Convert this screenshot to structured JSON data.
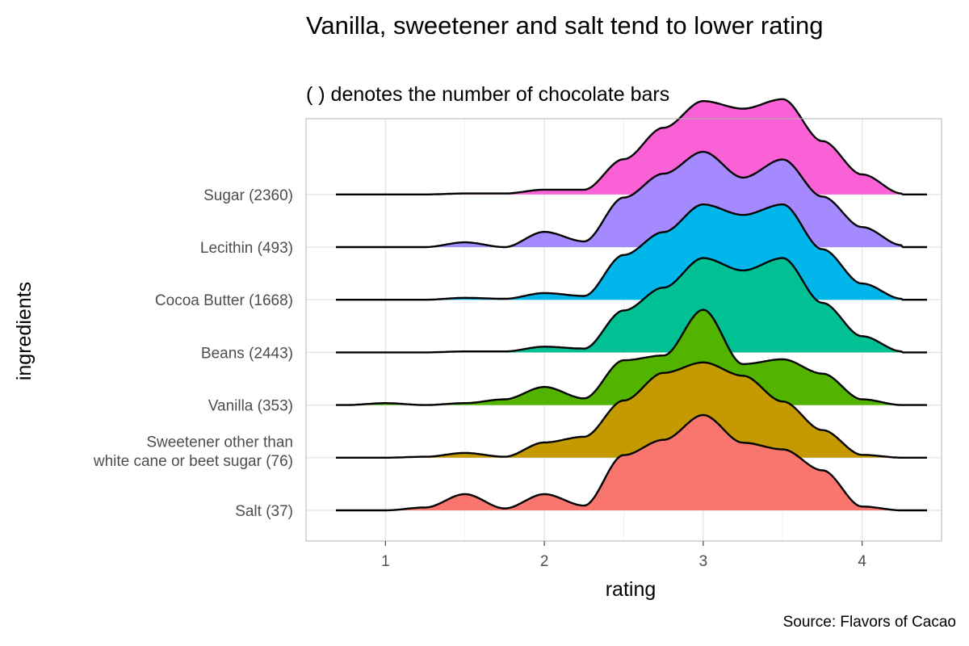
{
  "title": "Vanilla, sweetener and salt tend to lower rating",
  "subtitle": "( ) denotes the number of chocolate bars",
  "caption": "Source: Flavors of Cacao",
  "chart_data": {
    "type": "ridgeline",
    "xlabel": "rating",
    "ylabel": "ingredients",
    "xlim": [
      0.5,
      4.5
    ],
    "x_ticks": [
      1,
      2,
      3,
      4
    ],
    "grid": true,
    "legend": "none",
    "x": [
      0.75,
      1.0,
      1.25,
      1.5,
      1.75,
      2.0,
      2.25,
      2.5,
      2.75,
      3.0,
      3.25,
      3.5,
      3.75,
      4.0,
      4.25
    ],
    "series": [
      {
        "name": "Salt (37)",
        "color": "#F8766D",
        "density": [
          0.0,
          0.0,
          0.03,
          0.17,
          0.02,
          0.17,
          0.05,
          0.58,
          0.74,
          1.0,
          0.71,
          0.64,
          0.42,
          0.04,
          0.0
        ]
      },
      {
        "name": "Sweetener other than white cane or beet sugar (76)",
        "color": "#C49A00",
        "density": [
          0.0,
          0.0,
          0.01,
          0.05,
          0.01,
          0.16,
          0.22,
          0.6,
          0.89,
          1.0,
          0.86,
          0.59,
          0.29,
          0.03,
          0.0
        ]
      },
      {
        "name": "Vanilla (353)",
        "color": "#53B400",
        "density": [
          0.0,
          0.02,
          0.0,
          0.02,
          0.06,
          0.19,
          0.07,
          0.47,
          0.52,
          1.0,
          0.43,
          0.48,
          0.33,
          0.06,
          0.0
        ]
      },
      {
        "name": "Beans (2443)",
        "color": "#00C094",
        "density": [
          0.0,
          0.0,
          0.0,
          0.01,
          0.01,
          0.06,
          0.04,
          0.44,
          0.68,
          0.99,
          0.86,
          0.99,
          0.52,
          0.17,
          0.01
        ]
      },
      {
        "name": "Cocoa Butter (1668)",
        "color": "#00B6EB",
        "density": [
          0.0,
          0.0,
          0.0,
          0.02,
          0.01,
          0.07,
          0.04,
          0.47,
          0.71,
          1.0,
          0.89,
          1.0,
          0.53,
          0.17,
          0.01
        ]
      },
      {
        "name": "Lecithin (493)",
        "color": "#A58AFF",
        "density": [
          0.0,
          0.0,
          0.0,
          0.05,
          0.0,
          0.16,
          0.06,
          0.52,
          0.77,
          1.0,
          0.73,
          0.92,
          0.53,
          0.21,
          0.02
        ]
      },
      {
        "name": "Sugar (2360)",
        "color": "#FB61D7",
        "density": [
          0.0,
          0.0,
          0.0,
          0.01,
          0.01,
          0.05,
          0.05,
          0.37,
          0.7,
          0.98,
          0.9,
          1.0,
          0.56,
          0.21,
          0.01
        ]
      }
    ]
  }
}
